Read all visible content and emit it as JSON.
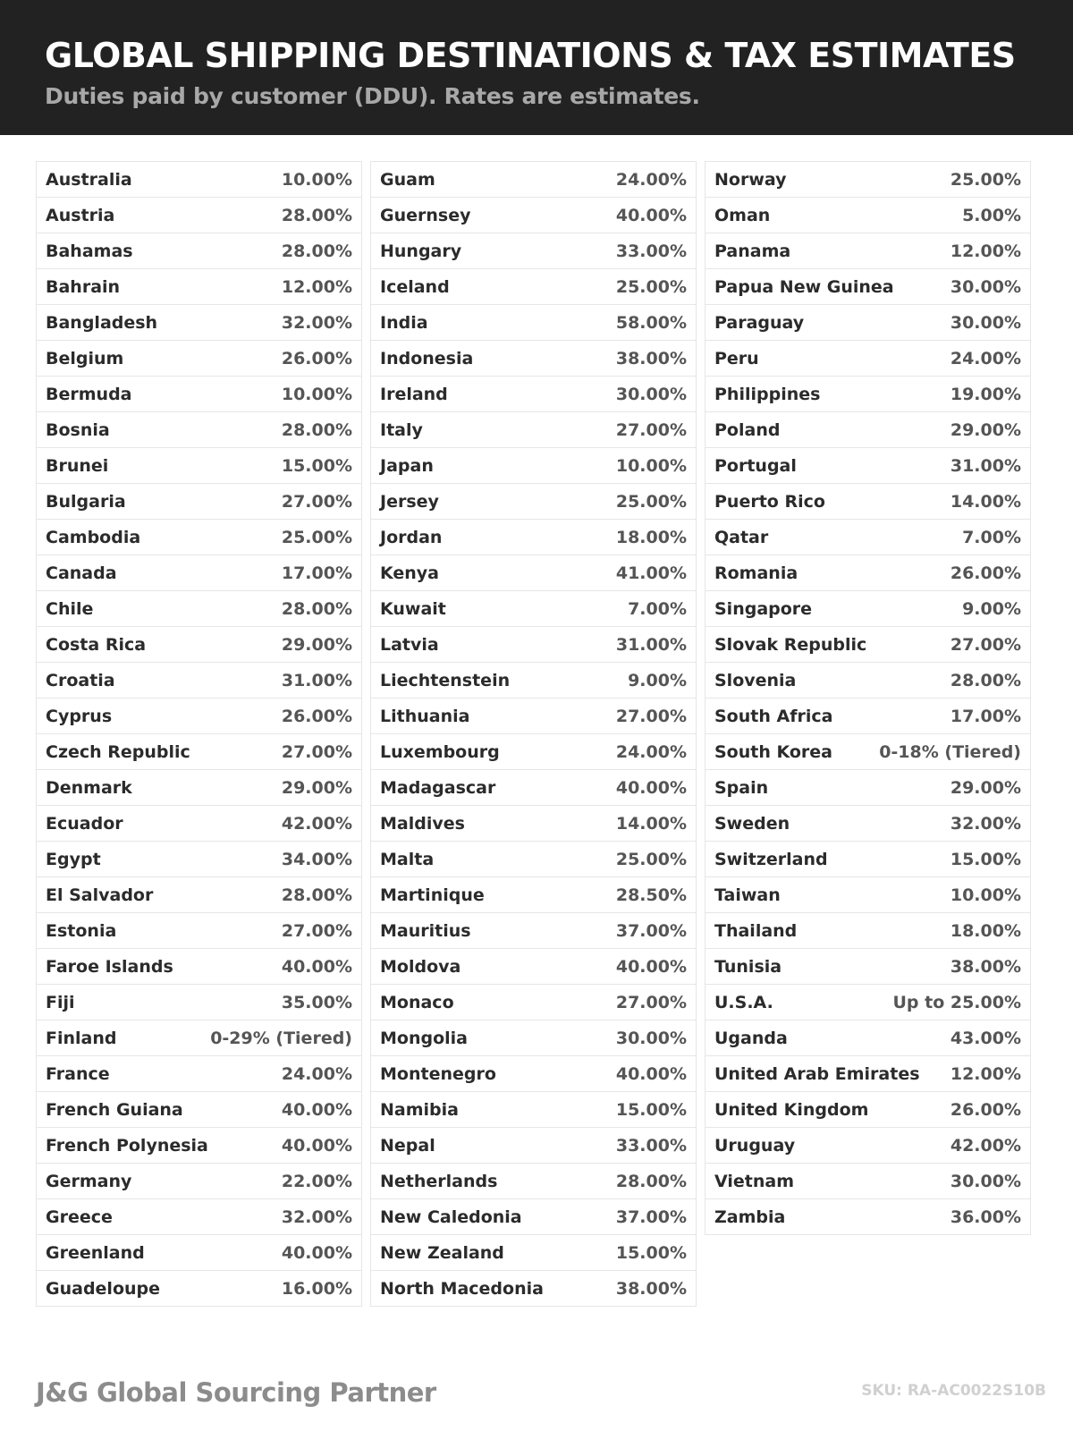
{
  "header": {
    "title": "GLOBAL SHIPPING DESTINATIONS & TAX ESTIMATES",
    "subtitle": "Duties paid by customer (DDU). Rates are estimates."
  },
  "columns": [
    [
      [
        "Australia",
        "10.00%"
      ],
      [
        "Austria",
        "28.00%"
      ],
      [
        "Bahamas",
        "28.00%"
      ],
      [
        "Bahrain",
        "12.00%"
      ],
      [
        "Bangladesh",
        "32.00%"
      ],
      [
        "Belgium",
        "26.00%"
      ],
      [
        "Bermuda",
        "10.00%"
      ],
      [
        "Bosnia",
        "28.00%"
      ],
      [
        "Brunei",
        "15.00%"
      ],
      [
        "Bulgaria",
        "27.00%"
      ],
      [
        "Cambodia",
        "25.00%"
      ],
      [
        "Canada",
        "17.00%"
      ],
      [
        "Chile",
        "28.00%"
      ],
      [
        "Costa Rica",
        "29.00%"
      ],
      [
        "Croatia",
        "31.00%"
      ],
      [
        "Cyprus",
        "26.00%"
      ],
      [
        "Czech Republic",
        "27.00%"
      ],
      [
        "Denmark",
        "29.00%"
      ],
      [
        "Ecuador",
        "42.00%"
      ],
      [
        "Egypt",
        "34.00%"
      ],
      [
        "El Salvador",
        "28.00%"
      ],
      [
        "Estonia",
        "27.00%"
      ],
      [
        "Faroe Islands",
        "40.00%"
      ],
      [
        "Fiji",
        "35.00%"
      ],
      [
        "Finland",
        "0-29% (Tiered)"
      ],
      [
        "France",
        "24.00%"
      ],
      [
        "French Guiana",
        "40.00%"
      ],
      [
        "French Polynesia",
        "40.00%"
      ],
      [
        "Germany",
        "22.00%"
      ],
      [
        "Greece",
        "32.00%"
      ],
      [
        "Greenland",
        "40.00%"
      ],
      [
        "Guadeloupe",
        "16.00%"
      ]
    ],
    [
      [
        "Guam",
        "24.00%"
      ],
      [
        "Guernsey",
        "40.00%"
      ],
      [
        "Hungary",
        "33.00%"
      ],
      [
        "Iceland",
        "25.00%"
      ],
      [
        "India",
        "58.00%"
      ],
      [
        "Indonesia",
        "38.00%"
      ],
      [
        "Ireland",
        "30.00%"
      ],
      [
        "Italy",
        "27.00%"
      ],
      [
        "Japan",
        "10.00%"
      ],
      [
        "Jersey",
        "25.00%"
      ],
      [
        "Jordan",
        "18.00%"
      ],
      [
        "Kenya",
        "41.00%"
      ],
      [
        "Kuwait",
        "7.00%"
      ],
      [
        "Latvia",
        "31.00%"
      ],
      [
        "Liechtenstein",
        "9.00%"
      ],
      [
        "Lithuania",
        "27.00%"
      ],
      [
        "Luxembourg",
        "24.00%"
      ],
      [
        "Madagascar",
        "40.00%"
      ],
      [
        "Maldives",
        "14.00%"
      ],
      [
        "Malta",
        "25.00%"
      ],
      [
        "Martinique",
        "28.50%"
      ],
      [
        "Mauritius",
        "37.00%"
      ],
      [
        "Moldova",
        "40.00%"
      ],
      [
        "Monaco",
        "27.00%"
      ],
      [
        "Mongolia",
        "30.00%"
      ],
      [
        "Montenegro",
        "40.00%"
      ],
      [
        "Namibia",
        "15.00%"
      ],
      [
        "Nepal",
        "33.00%"
      ],
      [
        "Netherlands",
        "28.00%"
      ],
      [
        "New Caledonia",
        "37.00%"
      ],
      [
        "New Zealand",
        "15.00%"
      ],
      [
        "North Macedonia",
        "38.00%"
      ]
    ],
    [
      [
        "Norway",
        "25.00%"
      ],
      [
        "Oman",
        "5.00%"
      ],
      [
        "Panama",
        "12.00%"
      ],
      [
        "Papua New Guinea",
        "30.00%"
      ],
      [
        "Paraguay",
        "30.00%"
      ],
      [
        "Peru",
        "24.00%"
      ],
      [
        "Philippines",
        "19.00%"
      ],
      [
        "Poland",
        "29.00%"
      ],
      [
        "Portugal",
        "31.00%"
      ],
      [
        "Puerto Rico",
        "14.00%"
      ],
      [
        "Qatar",
        "7.00%"
      ],
      [
        "Romania",
        "26.00%"
      ],
      [
        "Singapore",
        "9.00%"
      ],
      [
        "Slovak Republic",
        "27.00%"
      ],
      [
        "Slovenia",
        "28.00%"
      ],
      [
        "South Africa",
        "17.00%"
      ],
      [
        "South Korea",
        "0-18% (Tiered)"
      ],
      [
        "Spain",
        "29.00%"
      ],
      [
        "Sweden",
        "32.00%"
      ],
      [
        "Switzerland",
        "15.00%"
      ],
      [
        "Taiwan",
        "10.00%"
      ],
      [
        "Thailand",
        "18.00%"
      ],
      [
        "Tunisia",
        "38.00%"
      ],
      [
        "U.S.A.",
        "Up to 25.00%"
      ],
      [
        "Uganda",
        "43.00%"
      ],
      [
        "United Arab Emirates",
        "12.00%"
      ],
      [
        "United Kingdom",
        "26.00%"
      ],
      [
        "Uruguay",
        "42.00%"
      ],
      [
        "Vietnam",
        "30.00%"
      ],
      [
        "Zambia",
        "36.00%"
      ]
    ]
  ],
  "footer": {
    "brand": "J&G Global Sourcing Partner",
    "sku": "SKU: RA-AC0022S10B"
  },
  "colors": {
    "header_bg": "#222222",
    "border": "#e6e6e6"
  }
}
